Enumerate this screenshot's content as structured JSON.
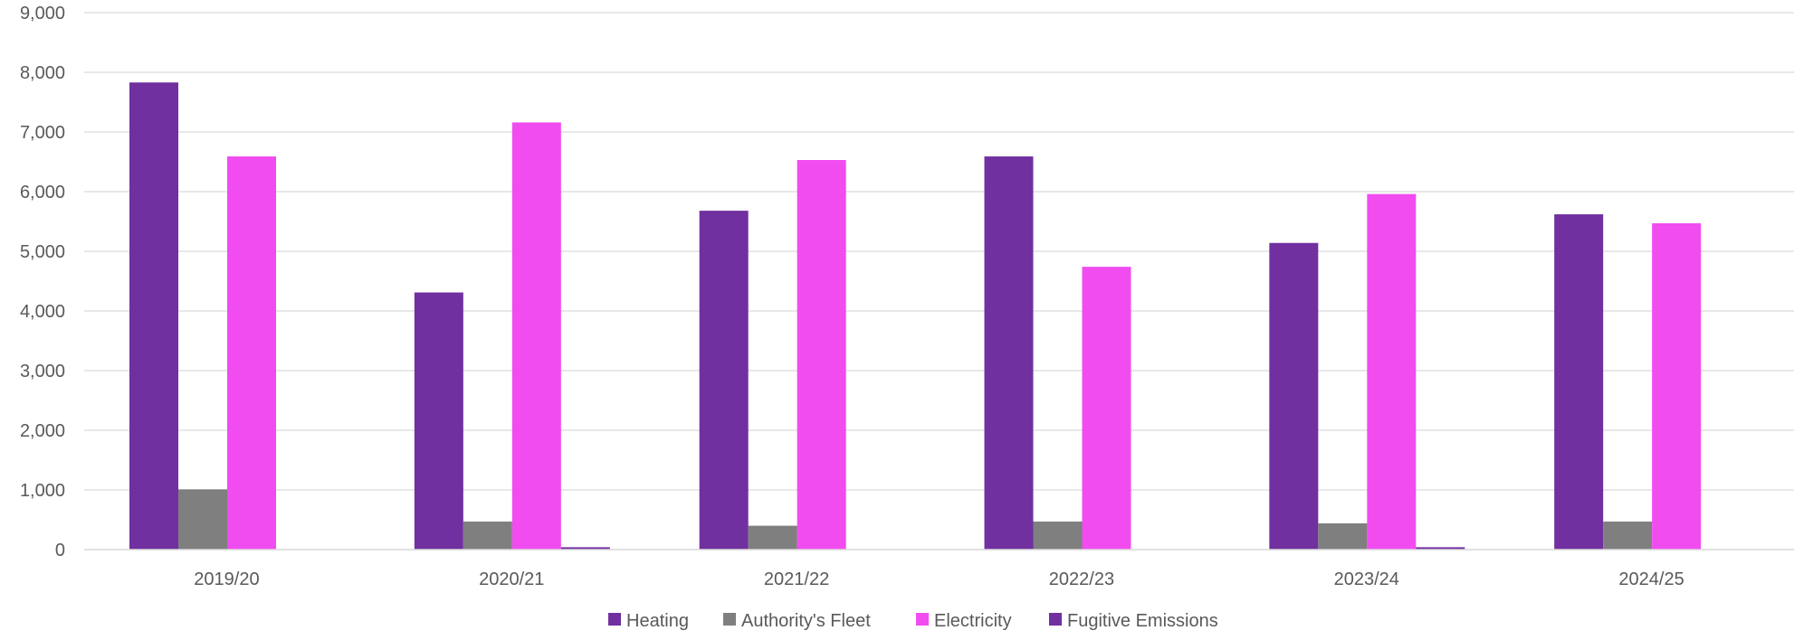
{
  "chart_data": {
    "type": "bar",
    "title": "",
    "xlabel": "",
    "ylabel": "",
    "ylim": [
      0,
      9000
    ],
    "yticks": [
      0,
      1000,
      2000,
      3000,
      4000,
      5000,
      6000,
      7000,
      8000,
      9000
    ],
    "ytick_labels": [
      "0",
      "1,000",
      "2,000",
      "3,000",
      "4,000",
      "5,000",
      "6,000",
      "7,000",
      "8,000",
      "9,000"
    ],
    "grid": true,
    "legend_position": "bottom",
    "categories": [
      "2019/20",
      "2020/21",
      "2021/22",
      "2022/23",
      "2023/24",
      "2024/25"
    ],
    "series": [
      {
        "name": "Heating",
        "color": "#7030a0",
        "values": [
          7830,
          4310,
          5680,
          6590,
          5140,
          5620
        ]
      },
      {
        "name": "Authority's Fleet",
        "color": "#7f7f7f",
        "values": [
          1010,
          470,
          400,
          470,
          440,
          470
        ]
      },
      {
        "name": "Electricity",
        "color": "#f04cf0",
        "values": [
          6590,
          7160,
          6530,
          4740,
          5960,
          5470
        ]
      },
      {
        "name": "Fugitive Emissions",
        "color": "#7030a0",
        "values": [
          0,
          40,
          0,
          0,
          40,
          0
        ]
      }
    ]
  }
}
